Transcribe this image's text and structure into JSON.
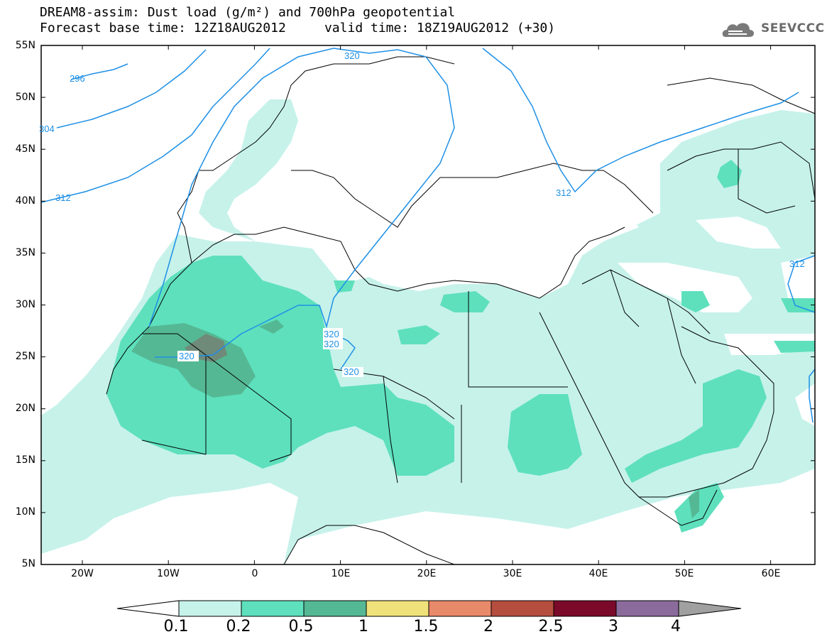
{
  "title": {
    "line1": "DREAM8-assim: Dust load (g/m²) and 700hPa geopotential",
    "line2": "Forecast base time: 12Z18AUG2012     valid time: 18Z19AUG2012 (+30)"
  },
  "logo": {
    "text": "SEEVCCC",
    "icon": "cloud-logo-icon"
  },
  "map": {
    "lat_labels": [
      "55N",
      "50N",
      "45N",
      "40N",
      "35N",
      "30N",
      "25N",
      "20N",
      "15N",
      "10N",
      "5N"
    ],
    "lon_labels": [
      "20W",
      "10W",
      "0",
      "10E",
      "20E",
      "30E",
      "40E",
      "50E",
      "60E"
    ],
    "contour_labels": [
      "296",
      "304",
      "312",
      "320",
      "312",
      "312",
      "320",
      "320",
      "320",
      "320"
    ]
  },
  "legend": {
    "levels": [
      "0.1",
      "0.2",
      "0.5",
      "1",
      "1.5",
      "2",
      "2.5",
      "3",
      "4"
    ],
    "colors": [
      "#c6f2ea",
      "#5ee0bd",
      "#55b894",
      "#f0e27a",
      "#e8896a",
      "#b54e3e",
      "#7b0a2a",
      "#8b6a9c",
      "#a0a0a0"
    ]
  },
  "colors": {
    "dust_light": "#c6f2ea",
    "dust_medium": "#5ee0bd",
    "dust_dark": "#55b894",
    "dust_darkest": "#6f8a78",
    "contour": "#1e90e6"
  }
}
